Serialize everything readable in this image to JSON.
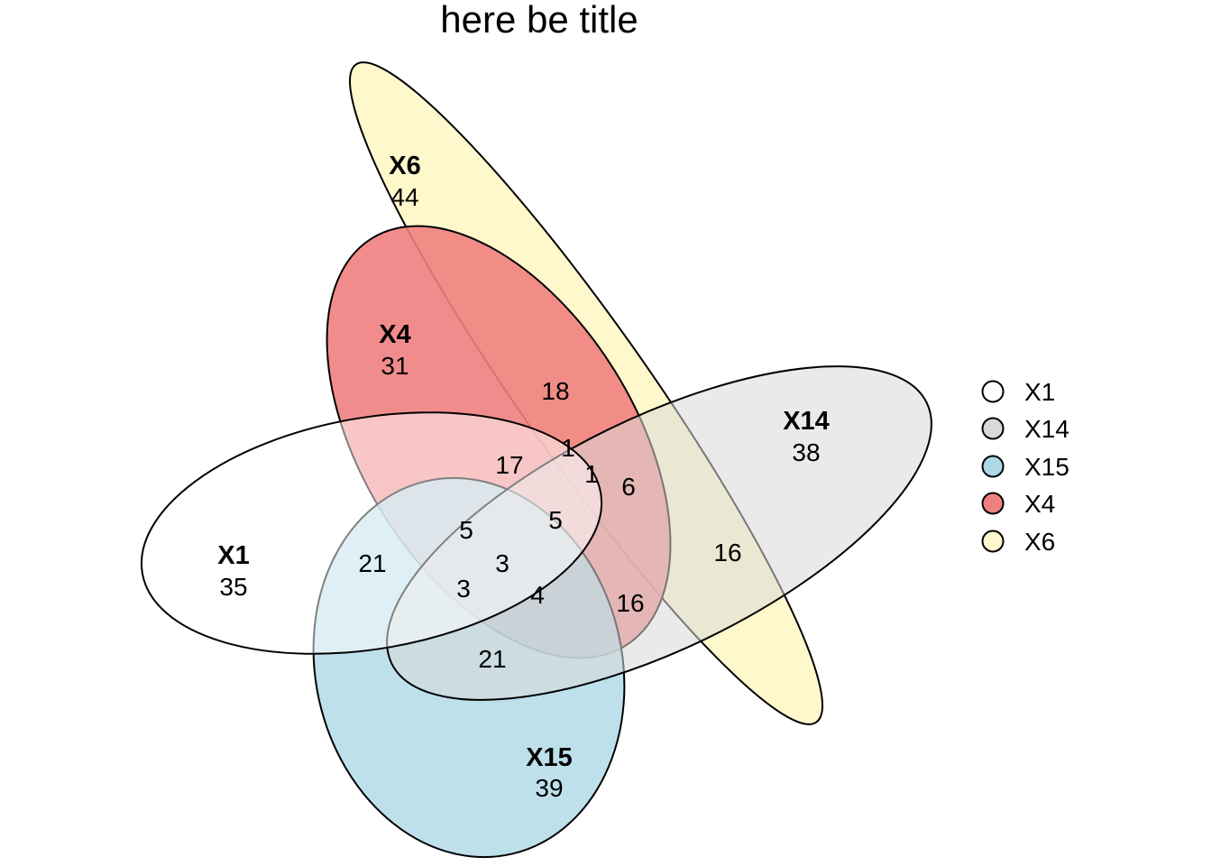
{
  "title": "here be title",
  "sets": [
    {
      "id": "X1",
      "label": "X1",
      "count": "35",
      "color": "#ffffff"
    },
    {
      "id": "X14",
      "label": "X14",
      "count": "38",
      "color": "#d9d9d9"
    },
    {
      "id": "X15",
      "label": "X15",
      "count": "39",
      "color": "#add8e6"
    },
    {
      "id": "X4",
      "label": "X4",
      "count": "31",
      "color": "#f08080"
    },
    {
      "id": "X6",
      "label": "X6",
      "count": "44",
      "color": "#fff8cc"
    }
  ],
  "intersections": [
    {
      "sets": [
        "X4",
        "X6"
      ],
      "count": "18"
    },
    {
      "sets": [
        "X1",
        "X4"
      ],
      "count": "17"
    },
    {
      "sets": [
        "X1",
        "X4",
        "X6"
      ],
      "count": "1"
    },
    {
      "sets": [
        "X1",
        "X4",
        "X6",
        "X14"
      ],
      "count": "1"
    },
    {
      "sets": [
        "X4",
        "X6",
        "X14"
      ],
      "count": "6"
    },
    {
      "sets": [
        "X6",
        "X14"
      ],
      "count": "16"
    },
    {
      "sets": [
        "X1",
        "X15"
      ],
      "count": "21"
    },
    {
      "sets": [
        "X1",
        "X4",
        "X15"
      ],
      "count": "5"
    },
    {
      "sets": [
        "X1",
        "X4",
        "X14"
      ],
      "count": "5"
    },
    {
      "sets": [
        "X1",
        "X4",
        "X14",
        "X15"
      ],
      "count": "3"
    },
    {
      "sets": [
        "X1",
        "X14",
        "X15"
      ],
      "count": "3"
    },
    {
      "sets": [
        "X4",
        "X14",
        "X15"
      ],
      "count": "4"
    },
    {
      "sets": [
        "X4",
        "X14"
      ],
      "count": "16"
    },
    {
      "sets": [
        "X14",
        "X15"
      ],
      "count": "21"
    }
  ],
  "legend": [
    {
      "label": "X1",
      "color": "#ffffff"
    },
    {
      "label": "X14",
      "color": "#d9d9d9"
    },
    {
      "label": "X15",
      "color": "#add8e6"
    },
    {
      "label": "X4",
      "color": "#f08080"
    },
    {
      "label": "X6",
      "color": "#fff8cc"
    }
  ]
}
